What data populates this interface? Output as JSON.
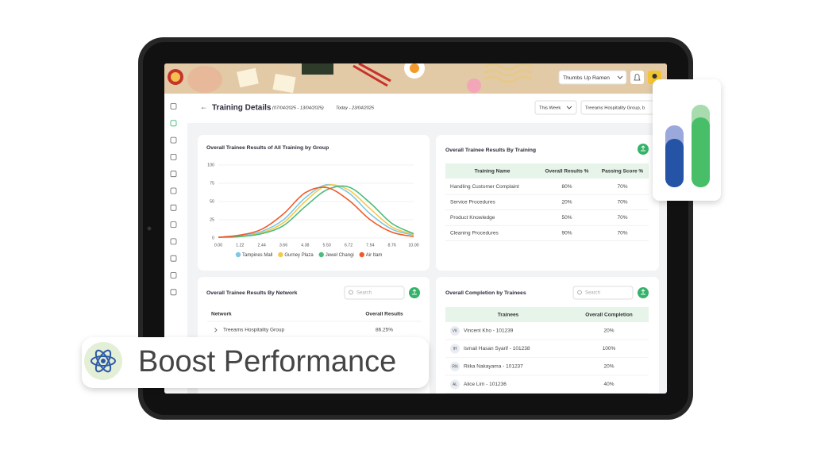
{
  "header": {
    "store": "Thumbs Up Ramen",
    "title": "Training Details",
    "date_range": "(07/04/2025 - 13/04/2025)",
    "today": "Today - 23/04/2025"
  },
  "filters": {
    "period": "This Week",
    "group": "Treeams Hospitality Group, b"
  },
  "chart_data": {
    "type": "line",
    "title": "Overall Trainee Results of All Training by Group",
    "categories": [
      "0.00",
      "1.22",
      "2.44",
      "3.66",
      "4.38",
      "5.50",
      "6.72",
      "7.54",
      "8.76",
      "10.00"
    ],
    "series": [
      {
        "name": "Tampines Mall",
        "color": "#7ec8e3",
        "values": [
          1,
          3,
          9,
          25,
          55,
          73,
          62,
          33,
          12,
          4
        ]
      },
      {
        "name": "Gurney Plaza",
        "color": "#f5c94a",
        "values": [
          1,
          2,
          7,
          21,
          50,
          72,
          66,
          40,
          15,
          5
        ]
      },
      {
        "name": "Jewel Changi",
        "color": "#4cbb7c",
        "values": [
          1,
          2,
          6,
          17,
          43,
          66,
          70,
          48,
          20,
          6
        ]
      },
      {
        "name": "Air Itam",
        "color": "#f05a28",
        "values": [
          1,
          4,
          12,
          33,
          62,
          69,
          52,
          25,
          8,
          2
        ]
      }
    ],
    "ylim": [
      0,
      100
    ],
    "yticks": [
      0,
      25,
      50,
      75,
      100
    ],
    "grid": true
  },
  "training_table": {
    "title": "Overall Trainee Results By Training",
    "columns": [
      "Training Name",
      "Overall Results %",
      "Passing Score %"
    ],
    "rows": [
      [
        "Handling Customer Complaint",
        "80%",
        "70%"
      ],
      [
        "Service Procedures",
        "20%",
        "70%"
      ],
      [
        "Product Knowledge",
        "50%",
        "70%"
      ],
      [
        "Cleaning Procedures",
        "90%",
        "70%"
      ]
    ]
  },
  "network_table": {
    "title": "Overall Trainee Results By Network",
    "search": "Search",
    "columns": [
      "Network",
      "Overall Results"
    ],
    "rows": [
      [
        "Treeams Hospitality Group",
        "86.25%"
      ]
    ]
  },
  "completion_table": {
    "title": "Overall Completion by Trainees",
    "search": "Search",
    "columns": [
      "Trainees",
      "Overall Completion"
    ],
    "rows": [
      {
        "initials": "VK",
        "name": "Vincent Kho - 101239",
        "value": "20%"
      },
      {
        "initials": "IH",
        "name": "Ismail Hasan Syarif - 101238",
        "value": "100%"
      },
      {
        "initials": "RN",
        "name": "Riika Nakayama - 101237",
        "value": "20%"
      },
      {
        "initials": "AL",
        "name": "Alice Lim - 101236",
        "value": "40%"
      }
    ]
  },
  "badge": {
    "text": "Boost Performance"
  }
}
